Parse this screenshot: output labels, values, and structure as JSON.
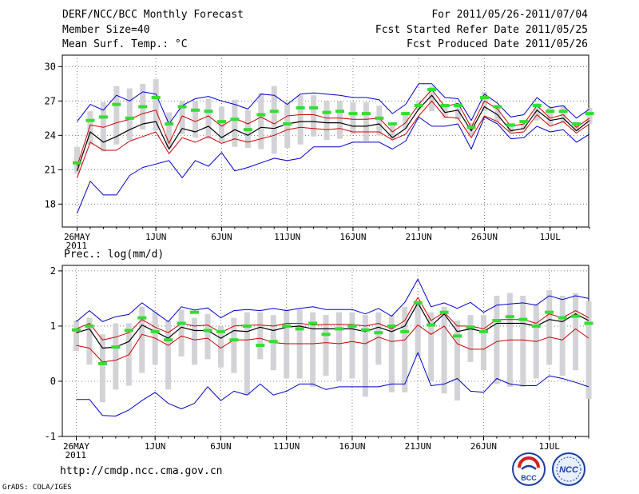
{
  "header": {
    "title": "DERF/NCC/BCC Monthly Forecast",
    "member_size": "Member Size=40",
    "variable": "Mean Surf. Temp.: °C",
    "period": "For 2011/05/26-2011/07/04",
    "started": "Fcst Started Refer Date 2011/05/25",
    "produced": "Fcst Produced Date 2011/05/26"
  },
  "footer": {
    "url": "http://cmdp.ncc.cma.gov.cn",
    "credit": "GrADS: COLA/IGES",
    "logo_left_text": "BCC",
    "logo_right_text": "NCC"
  },
  "colors": {
    "envelope": "#0000cc",
    "quartile": "#cc0000",
    "median": "#000000",
    "mean_marker": "#33dd33",
    "bars": "#d3d3d7",
    "grid": "#666666"
  },
  "chart_data": [
    {
      "type": "line",
      "name": "temperature",
      "title": "Mean Surf. Temp.: °C",
      "xlabel": "",
      "ylabel": "°C",
      "ylim": [
        16,
        31
      ],
      "yticks": [
        18,
        21,
        24,
        27,
        30
      ],
      "grid": true,
      "xticks": [
        {
          "day": 1,
          "label": "26MAY",
          "label2": "2011"
        },
        {
          "day": 7,
          "label": "1JUN"
        },
        {
          "day": 12,
          "label": "6JUN"
        },
        {
          "day": 17,
          "label": "11JUN"
        },
        {
          "day": 22,
          "label": "16JUN"
        },
        {
          "day": 27,
          "label": "21JUN"
        },
        {
          "day": 32,
          "label": "26JUN"
        },
        {
          "day": 37,
          "label": "1JUL"
        }
      ],
      "x": [
        1,
        2,
        3,
        4,
        5,
        6,
        7,
        8,
        9,
        10,
        11,
        12,
        13,
        14,
        15,
        16,
        17,
        18,
        19,
        20,
        21,
        22,
        23,
        24,
        25,
        26,
        27,
        28,
        29,
        30,
        31,
        32,
        33,
        34,
        35,
        36,
        37,
        38,
        39,
        40
      ],
      "series": [
        {
          "name": "max",
          "values": [
            17.2,
            20.0,
            18.8,
            18.8,
            20.5,
            21.2,
            21.5,
            21.8,
            20.3,
            21.8,
            21.3,
            22.5,
            20.9,
            21.2,
            21.6,
            22.0,
            21.8,
            22.0,
            23.0,
            23.0,
            23.0,
            23.4,
            23.4,
            23.4,
            22.8,
            23.5,
            25.6,
            24.8,
            24.8,
            25.0,
            22.8,
            25.6,
            25.0,
            23.7,
            23.8,
            24.8,
            24.3,
            24.5,
            23.4,
            24.1
          ]
        },
        {
          "name": "upper",
          "values": [
            25.2,
            26.7,
            26.2,
            27.5,
            27.0,
            27.8,
            27.6,
            25.0,
            26.6,
            27.2,
            27.4,
            27.0,
            26.7,
            26.3,
            27.6,
            27.5,
            26.7,
            27.6,
            27.7,
            27.6,
            27.5,
            27.3,
            27.3,
            27.1,
            25.9,
            26.7,
            28.5,
            28.5,
            27.3,
            27.2,
            25.3,
            27.6,
            26.8,
            25.6,
            25.8,
            27.3,
            26.4,
            26.6,
            25.5,
            26.3
          ]
        },
        {
          "name": "q75",
          "values": [
            21.3,
            24.9,
            24.7,
            25.1,
            25.4,
            25.9,
            26.2,
            23.3,
            25.7,
            25.2,
            25.7,
            24.8,
            25.5,
            25.0,
            25.6,
            25.0,
            25.7,
            25.8,
            25.8,
            25.5,
            25.5,
            25.4,
            25.4,
            25.5,
            24.3,
            25.1,
            26.7,
            28.0,
            26.5,
            26.8,
            24.7,
            27.0,
            26.3,
            24.8,
            25.0,
            26.6,
            25.5,
            25.8,
            24.7,
            25.5
          ]
        },
        {
          "name": "median",
          "values": [
            20.9,
            24.3,
            23.4,
            23.9,
            24.5,
            25.0,
            25.2,
            22.8,
            24.6,
            24.3,
            24.8,
            23.8,
            24.5,
            24.0,
            24.7,
            24.6,
            25.0,
            25.2,
            25.2,
            25.1,
            25.1,
            24.8,
            24.8,
            25.0,
            23.8,
            24.6,
            26.3,
            27.5,
            26.0,
            26.2,
            24.4,
            26.5,
            25.8,
            24.4,
            24.6,
            26.2,
            25.3,
            25.5,
            24.4,
            25.3
          ]
        },
        {
          "name": "q25",
          "values": [
            20.3,
            23.4,
            22.7,
            22.7,
            23.5,
            23.9,
            24.3,
            22.4,
            23.8,
            23.4,
            23.9,
            23.3,
            23.7,
            23.4,
            23.7,
            24.0,
            24.5,
            24.7,
            24.6,
            24.5,
            24.6,
            24.3,
            24.3,
            24.3,
            23.6,
            24.1,
            25.7,
            27.0,
            25.6,
            25.5,
            23.8,
            25.7,
            25.2,
            24.2,
            24.3,
            25.8,
            24.8,
            25.2,
            24.2,
            25.0
          ]
        },
        {
          "name": "mean_marker",
          "values": [
            21.6,
            25.3,
            25.6,
            26.7,
            25.5,
            26.5,
            27.3,
            25.0,
            26.5,
            26.2,
            26.1,
            25.2,
            25.4,
            24.5,
            25.8,
            26.1,
            25.0,
            26.4,
            26.4,
            26.0,
            26.1,
            25.9,
            25.9,
            25.5,
            25.0,
            25.9,
            26.6,
            28.0,
            26.6,
            26.6,
            24.7,
            27.3,
            26.5,
            24.9,
            25.2,
            26.6,
            26.1,
            26.1,
            25.0,
            25.9
          ]
        },
        {
          "name": "bar_high",
          "values": [
            23.0,
            26.1,
            26.9,
            28.3,
            28.1,
            28.5,
            28.9,
            26.0,
            27.0,
            27.0,
            27.2,
            26.5,
            27.1,
            26.2,
            27.7,
            28.3,
            26.9,
            27.5,
            27.5,
            27.0,
            27.0,
            26.9,
            26.9,
            26.6,
            25.1,
            25.8,
            27.0,
            28.3,
            26.6,
            26.8,
            25.1,
            27.8,
            26.5,
            24.9,
            25.0,
            26.8,
            26.4,
            26.6,
            25.1,
            26.4
          ]
        },
        {
          "name": "bar_low",
          "values": [
            20.7,
            23.2,
            22.6,
            23.2,
            23.6,
            24.5,
            24.4,
            22.9,
            24.1,
            23.8,
            23.7,
            23.4,
            23.0,
            22.9,
            22.8,
            22.4,
            22.9,
            23.2,
            23.9,
            23.6,
            23.7,
            24.1,
            23.5,
            24.0,
            23.7,
            24.6,
            26.2,
            26.1,
            25.5,
            25.4,
            24.0,
            26.1,
            25.2,
            24.3,
            24.5,
            25.3,
            24.9,
            25.1,
            24.4,
            25.0
          ]
        }
      ]
    },
    {
      "type": "line",
      "name": "precipitation",
      "title": "Prec.: log(mm/d)",
      "xlabel": "",
      "ylabel": "log(mm/d)",
      "ylim": [
        -1,
        2.1
      ],
      "yticks": [
        -1,
        0,
        1,
        2
      ],
      "grid": true,
      "xticks": [
        {
          "day": 1,
          "label": "26MAY",
          "label2": "2011"
        },
        {
          "day": 7,
          "label": "1JUN"
        },
        {
          "day": 12,
          "label": "6JUN"
        },
        {
          "day": 17,
          "label": "11JUN"
        },
        {
          "day": 22,
          "label": "16JUN"
        },
        {
          "day": 27,
          "label": "21JUN"
        },
        {
          "day": 32,
          "label": "26JUN"
        },
        {
          "day": 37,
          "label": "1JUL"
        }
      ],
      "x": [
        1,
        2,
        3,
        4,
        5,
        6,
        7,
        8,
        9,
        10,
        11,
        12,
        13,
        14,
        15,
        16,
        17,
        18,
        19,
        20,
        21,
        22,
        23,
        24,
        25,
        26,
        27,
        28,
        29,
        30,
        31,
        32,
        33,
        34,
        35,
        36,
        37,
        38,
        39,
        40
      ],
      "series": [
        {
          "name": "max",
          "values": [
            -0.33,
            -0.33,
            -0.62,
            -0.63,
            -0.52,
            -0.35,
            -0.2,
            -0.4,
            -0.5,
            -0.4,
            -0.1,
            -0.35,
            -0.18,
            -0.25,
            -0.05,
            -0.25,
            -0.18,
            -0.05,
            -0.05,
            -0.15,
            -0.1,
            -0.1,
            -0.1,
            -0.1,
            -0.05,
            -0.05,
            0.52,
            -0.08,
            -0.05,
            0.05,
            -0.18,
            -0.2,
            0.05,
            -0.05,
            -0.08,
            -0.08,
            0.1,
            0.05,
            -0.02,
            -0.1
          ]
        },
        {
          "name": "upper",
          "values": [
            1.08,
            1.28,
            1.08,
            1.17,
            1.21,
            1.42,
            1.25,
            1.08,
            1.35,
            1.29,
            1.33,
            1.15,
            1.28,
            1.3,
            1.28,
            1.32,
            1.28,
            1.32,
            1.35,
            1.3,
            1.3,
            1.3,
            1.22,
            1.32,
            1.18,
            1.43,
            1.85,
            1.35,
            1.42,
            1.32,
            1.43,
            1.25,
            1.38,
            1.4,
            1.42,
            1.38,
            1.55,
            1.48,
            1.55,
            1.5
          ]
        },
        {
          "name": "q75",
          "values": [
            0.95,
            1.05,
            0.75,
            0.8,
            0.88,
            1.12,
            0.98,
            0.88,
            1.05,
            1.0,
            1.02,
            0.88,
            1.0,
            1.02,
            1.02,
            1.0,
            1.05,
            1.05,
            1.02,
            1.03,
            1.03,
            1.03,
            1.0,
            1.05,
            0.95,
            1.1,
            1.52,
            1.1,
            1.25,
            1.0,
            1.0,
            0.95,
            1.12,
            1.12,
            1.12,
            1.05,
            1.22,
            1.15,
            1.28,
            1.15
          ]
        },
        {
          "name": "median",
          "values": [
            0.88,
            0.95,
            0.6,
            0.62,
            0.72,
            1.02,
            0.9,
            0.78,
            0.98,
            0.92,
            0.92,
            0.78,
            0.92,
            0.9,
            0.98,
            0.92,
            0.98,
            1.0,
            0.95,
            0.95,
            0.95,
            0.95,
            0.9,
            0.98,
            0.9,
            1.0,
            1.42,
            1.0,
            1.22,
            0.9,
            0.95,
            0.9,
            1.05,
            1.05,
            1.05,
            1.0,
            1.12,
            1.08,
            1.22,
            1.1
          ]
        },
        {
          "name": "q25",
          "values": [
            0.65,
            0.6,
            0.35,
            0.38,
            0.48,
            0.85,
            0.78,
            0.65,
            0.82,
            0.75,
            0.78,
            0.6,
            0.75,
            0.75,
            0.78,
            0.7,
            0.68,
            0.68,
            0.68,
            0.7,
            0.68,
            0.72,
            0.68,
            0.8,
            0.72,
            0.75,
            1.02,
            0.85,
            1.0,
            0.68,
            0.58,
            0.58,
            0.72,
            0.75,
            0.75,
            0.72,
            0.8,
            0.75,
            0.95,
            0.78
          ]
        },
        {
          "name": "mean_marker",
          "values": [
            0.93,
            1.0,
            0.32,
            0.62,
            0.92,
            1.15,
            0.9,
            0.75,
            1.05,
            1.25,
            0.92,
            0.9,
            0.75,
            1.0,
            0.65,
            0.72,
            1.0,
            0.95,
            1.05,
            0.85,
            0.95,
            1.0,
            0.93,
            0.88,
            1.0,
            0.9,
            1.42,
            1.02,
            1.25,
            0.82,
            0.98,
            0.9,
            1.1,
            1.17,
            1.12,
            1.0,
            1.25,
            1.15,
            1.18,
            1.05
          ]
        },
        {
          "name": "bar_high",
          "values": [
            1.1,
            1.15,
            0.85,
            1.05,
            1.05,
            1.35,
            1.25,
            1.1,
            1.3,
            1.15,
            1.22,
            1.0,
            1.15,
            1.25,
            1.25,
            1.2,
            1.3,
            1.3,
            1.25,
            1.2,
            1.25,
            1.25,
            1.2,
            1.25,
            1.2,
            1.35,
            1.45,
            1.25,
            1.35,
            1.1,
            1.2,
            1.2,
            1.55,
            1.6,
            1.55,
            1.4,
            1.65,
            1.55,
            1.6,
            1.45
          ]
        },
        {
          "name": "bar_low",
          "values": [
            0.55,
            0.3,
            -0.38,
            -0.15,
            -0.08,
            0.15,
            0.3,
            -0.15,
            0.45,
            0.3,
            0.4,
            0.25,
            0.15,
            -0.25,
            0.4,
            0.2,
            0.05,
            0.05,
            -0.1,
            0.1,
            0.0,
            0.05,
            -0.28,
            0.3,
            -0.2,
            -0.2,
            0.45,
            0.0,
            -0.22,
            -0.35,
            0.35,
            0.2,
            -0.05,
            -0.1,
            -0.1,
            0.05,
            0.3,
            0.1,
            0.2,
            -0.32
          ]
        }
      ]
    }
  ]
}
